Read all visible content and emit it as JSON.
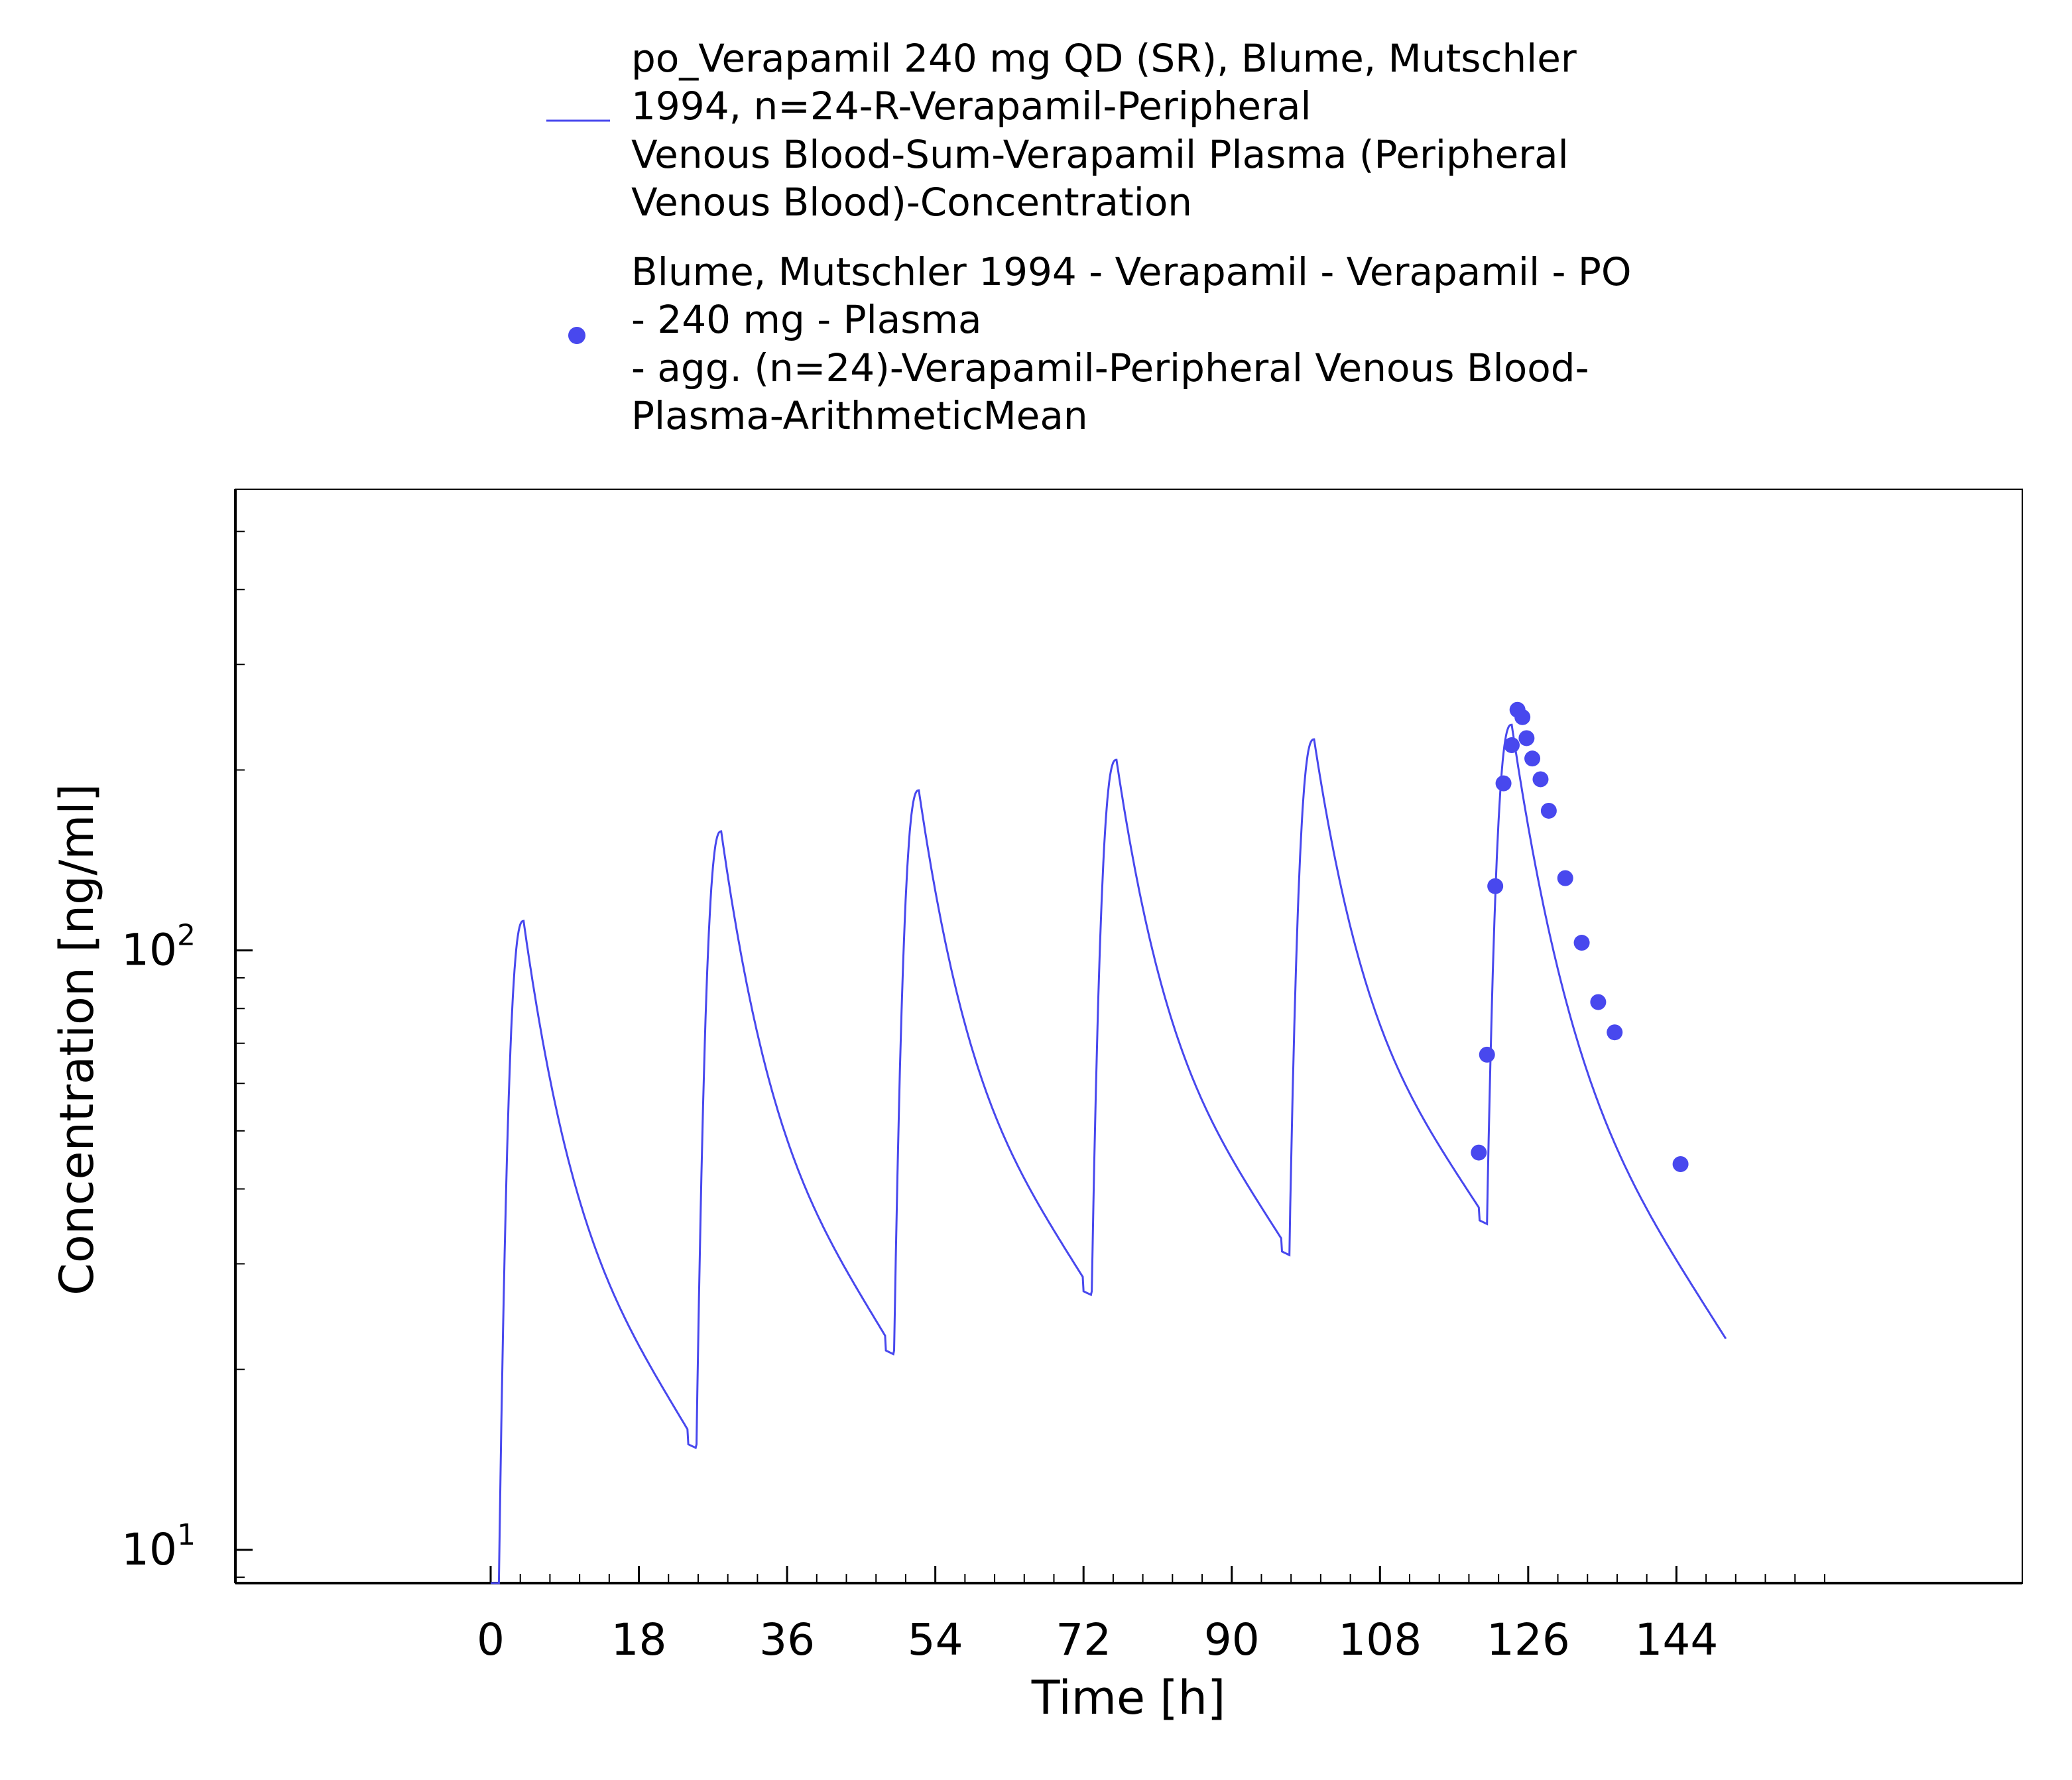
{
  "chart_data": {
    "type": "line",
    "xlabel": "Time [h]",
    "ylabel": "Concentration [ng/ml]",
    "xlim": [
      -31,
      186
    ],
    "ylim": [
      8.8,
      588
    ],
    "yscale": "log",
    "xticks": [
      0,
      18,
      36,
      54,
      72,
      90,
      108,
      126,
      144
    ],
    "xtick_labels": [
      "0",
      "18",
      "36",
      "54",
      "72",
      "90",
      "108",
      "126",
      "144"
    ],
    "yticks": [
      {
        "value": 10,
        "base": "10",
        "exp": "1"
      },
      {
        "value": 100,
        "base": "10",
        "exp": "2"
      }
    ],
    "grid": false,
    "legend_position": "top",
    "colors": {
      "series": "#4848ee",
      "axis": "#000000"
    },
    "series": [
      {
        "name": "po_Verapamil 240 mg QD (SR), Blume, Mutschler 1994, n=24-R-Verapamil-Peripheral Venous Blood-Sum-Verapamil Plasma (Peripheral Venous Blood)-Concentration",
        "legend_lines": [
          "po_Verapamil 240 mg QD (SR), Blume, Mutschler",
          "1994, n=24-R-Verapamil-Peripheral",
          "Venous Blood-Sum-Verapamil Plasma (Peripheral",
          "Venous Blood)-Concentration"
        ],
        "style": "line",
        "dose_interval_h": 24,
        "end_time_h": 150,
        "trough_before_dose": [
          8.8,
          15,
          21.5,
          27,
          31.5,
          35.5
        ],
        "peaks": [
          {
            "t": 4,
            "y": 112
          },
          {
            "t": 28,
            "y": 158
          },
          {
            "t": 52,
            "y": 185
          },
          {
            "t": 76,
            "y": 208
          },
          {
            "t": 100,
            "y": 225
          },
          {
            "t": 124,
            "y": 238
          }
        ],
        "end_value": 22.5
      },
      {
        "name": "Blume, Mutschler 1994 - Verapamil - Verapamil - PO - 240 mg - Plasma - agg. (n=24)-Verapamil-Peripheral Venous Blood-Plasma-ArithmeticMean",
        "legend_lines": [
          "Blume, Mutschler 1994 - Verapamil - Verapamil - PO",
          "- 240 mg - Plasma",
          "- agg. (n=24)-Verapamil-Peripheral Venous Blood-",
          "Plasma-ArithmeticMean"
        ],
        "style": "scatter",
        "points": [
          {
            "x": 120,
            "y": 46
          },
          {
            "x": 121,
            "y": 67
          },
          {
            "x": 122,
            "y": 128
          },
          {
            "x": 123,
            "y": 190
          },
          {
            "x": 124,
            "y": 220
          },
          {
            "x": 124.7,
            "y": 252
          },
          {
            "x": 125.3,
            "y": 245
          },
          {
            "x": 125.8,
            "y": 226
          },
          {
            "x": 126.5,
            "y": 209
          },
          {
            "x": 127.5,
            "y": 193
          },
          {
            "x": 128.5,
            "y": 171
          },
          {
            "x": 130.5,
            "y": 132
          },
          {
            "x": 132.5,
            "y": 103
          },
          {
            "x": 134.5,
            "y": 82
          },
          {
            "x": 136.5,
            "y": 73
          },
          {
            "x": 144.5,
            "y": 44
          }
        ]
      }
    ]
  }
}
